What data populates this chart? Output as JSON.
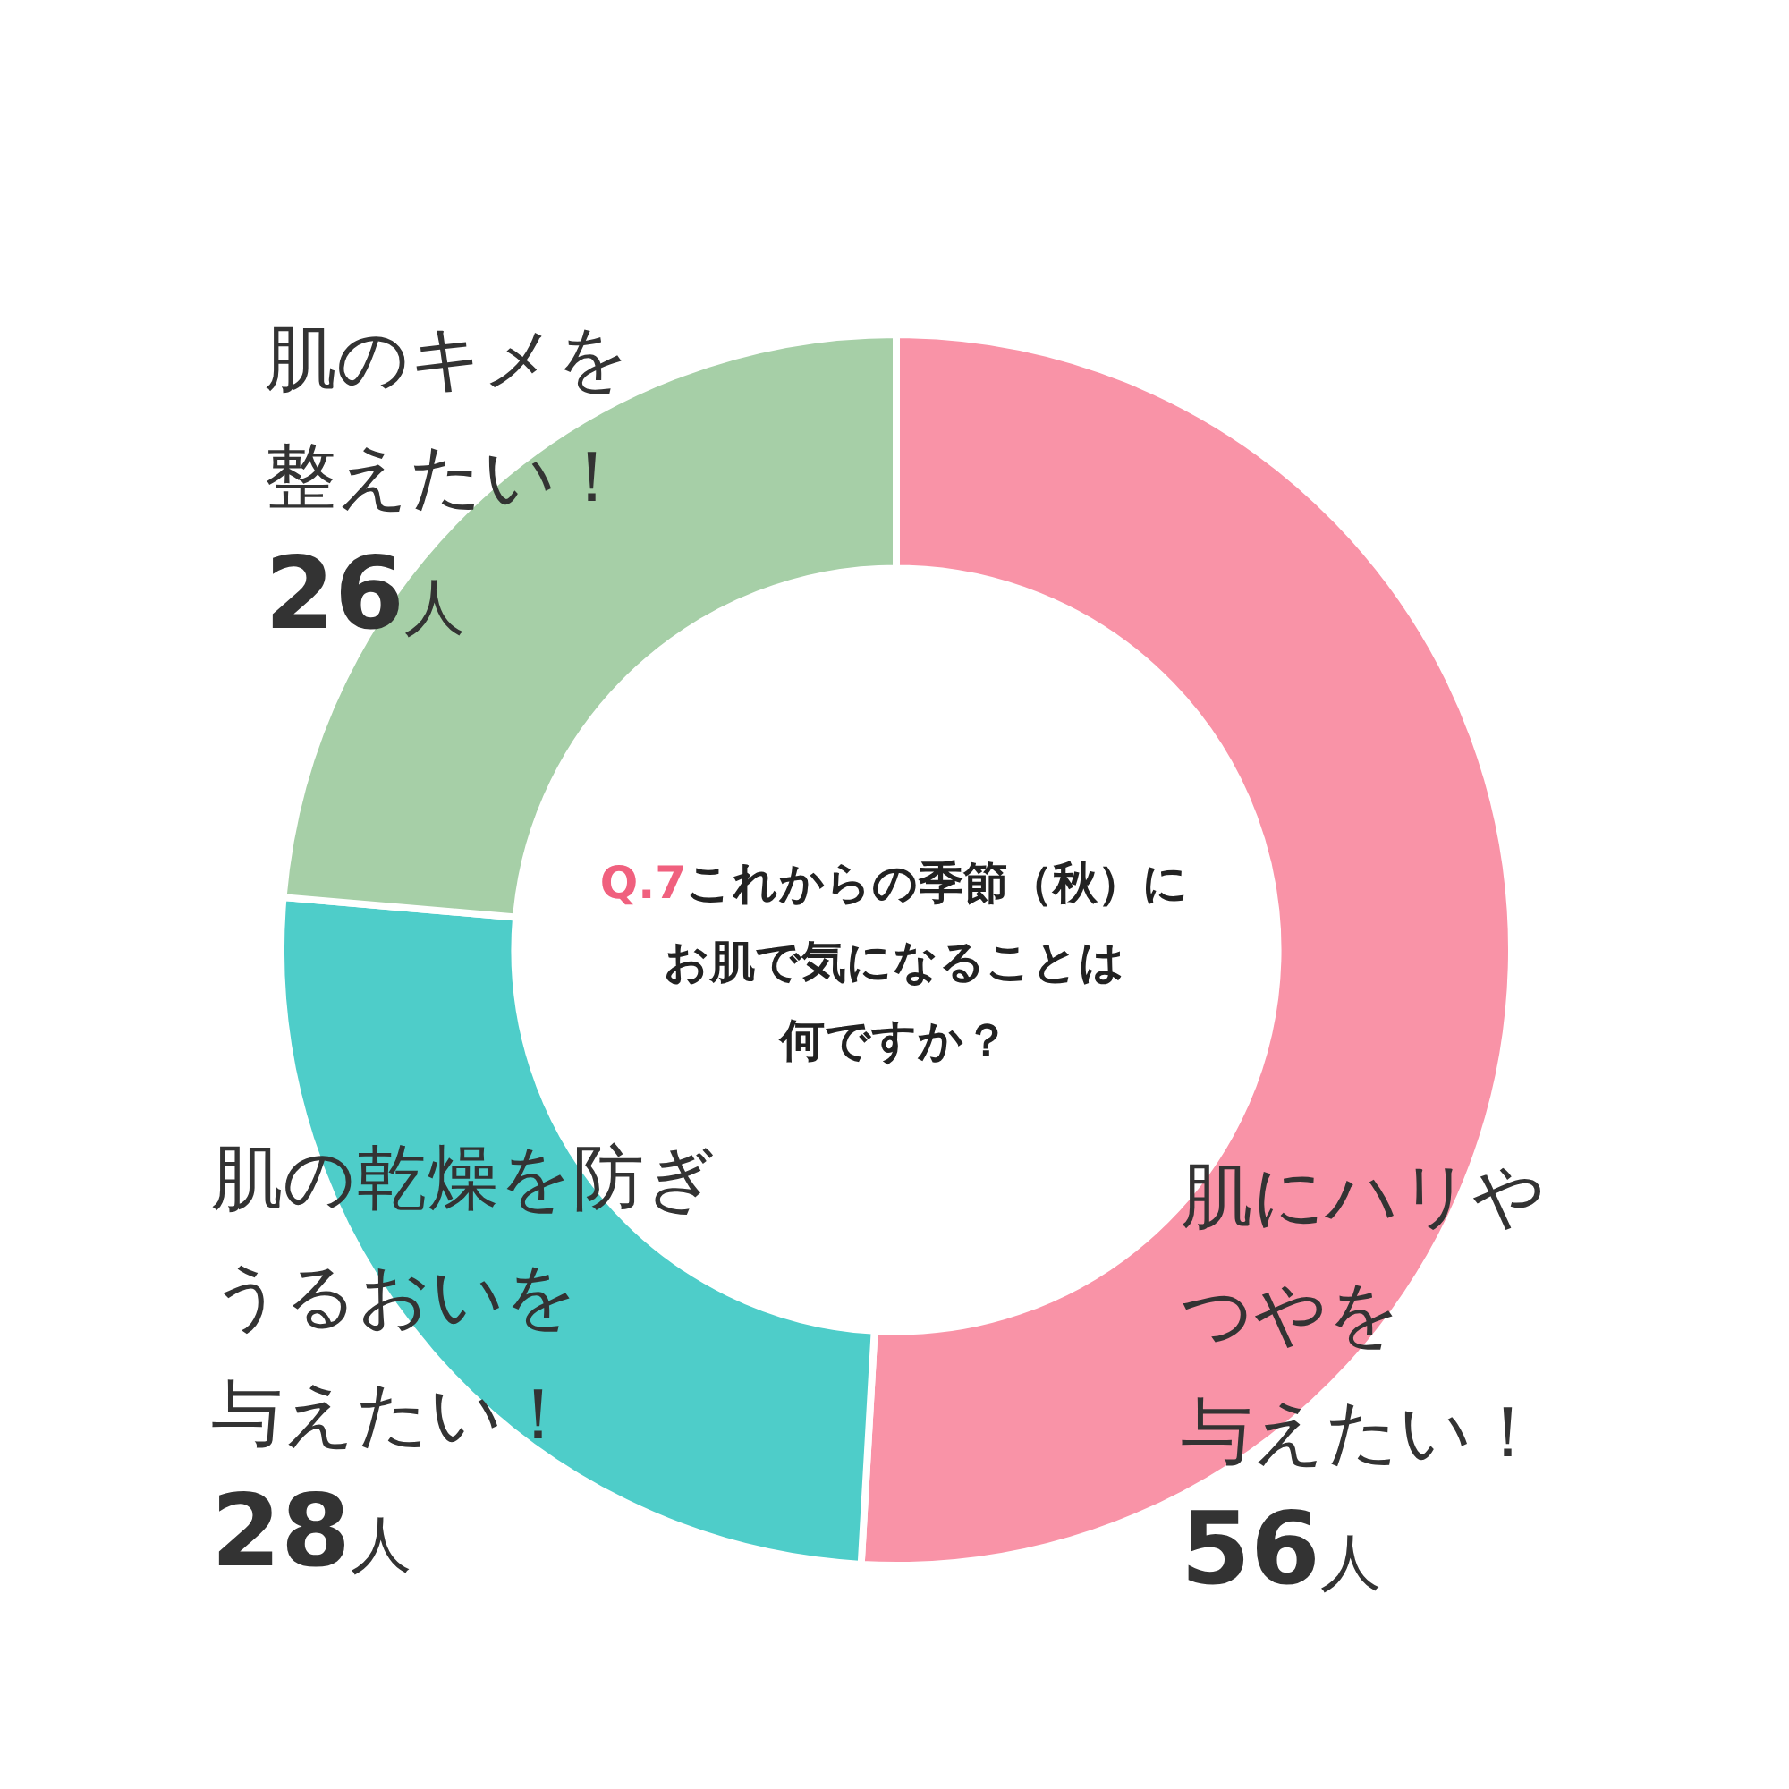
{
  "chart_data": {
    "type": "donut",
    "title": "Q.7これからの季節（秋）にお肌で気になることは何ですか？",
    "categories": [
      "肌にハリやつやを与えたい！",
      "肌の乾燥を防ぎうるおいを与えたい！",
      "肌のキメを整えたい！"
    ],
    "values": [
      56,
      28,
      26
    ],
    "colors": [
      "#f993a7",
      "#4ecdc9",
      "#a6cfa7"
    ],
    "value_labels": [
      "56人",
      "28人",
      "26人"
    ],
    "legend": false
  }
}
